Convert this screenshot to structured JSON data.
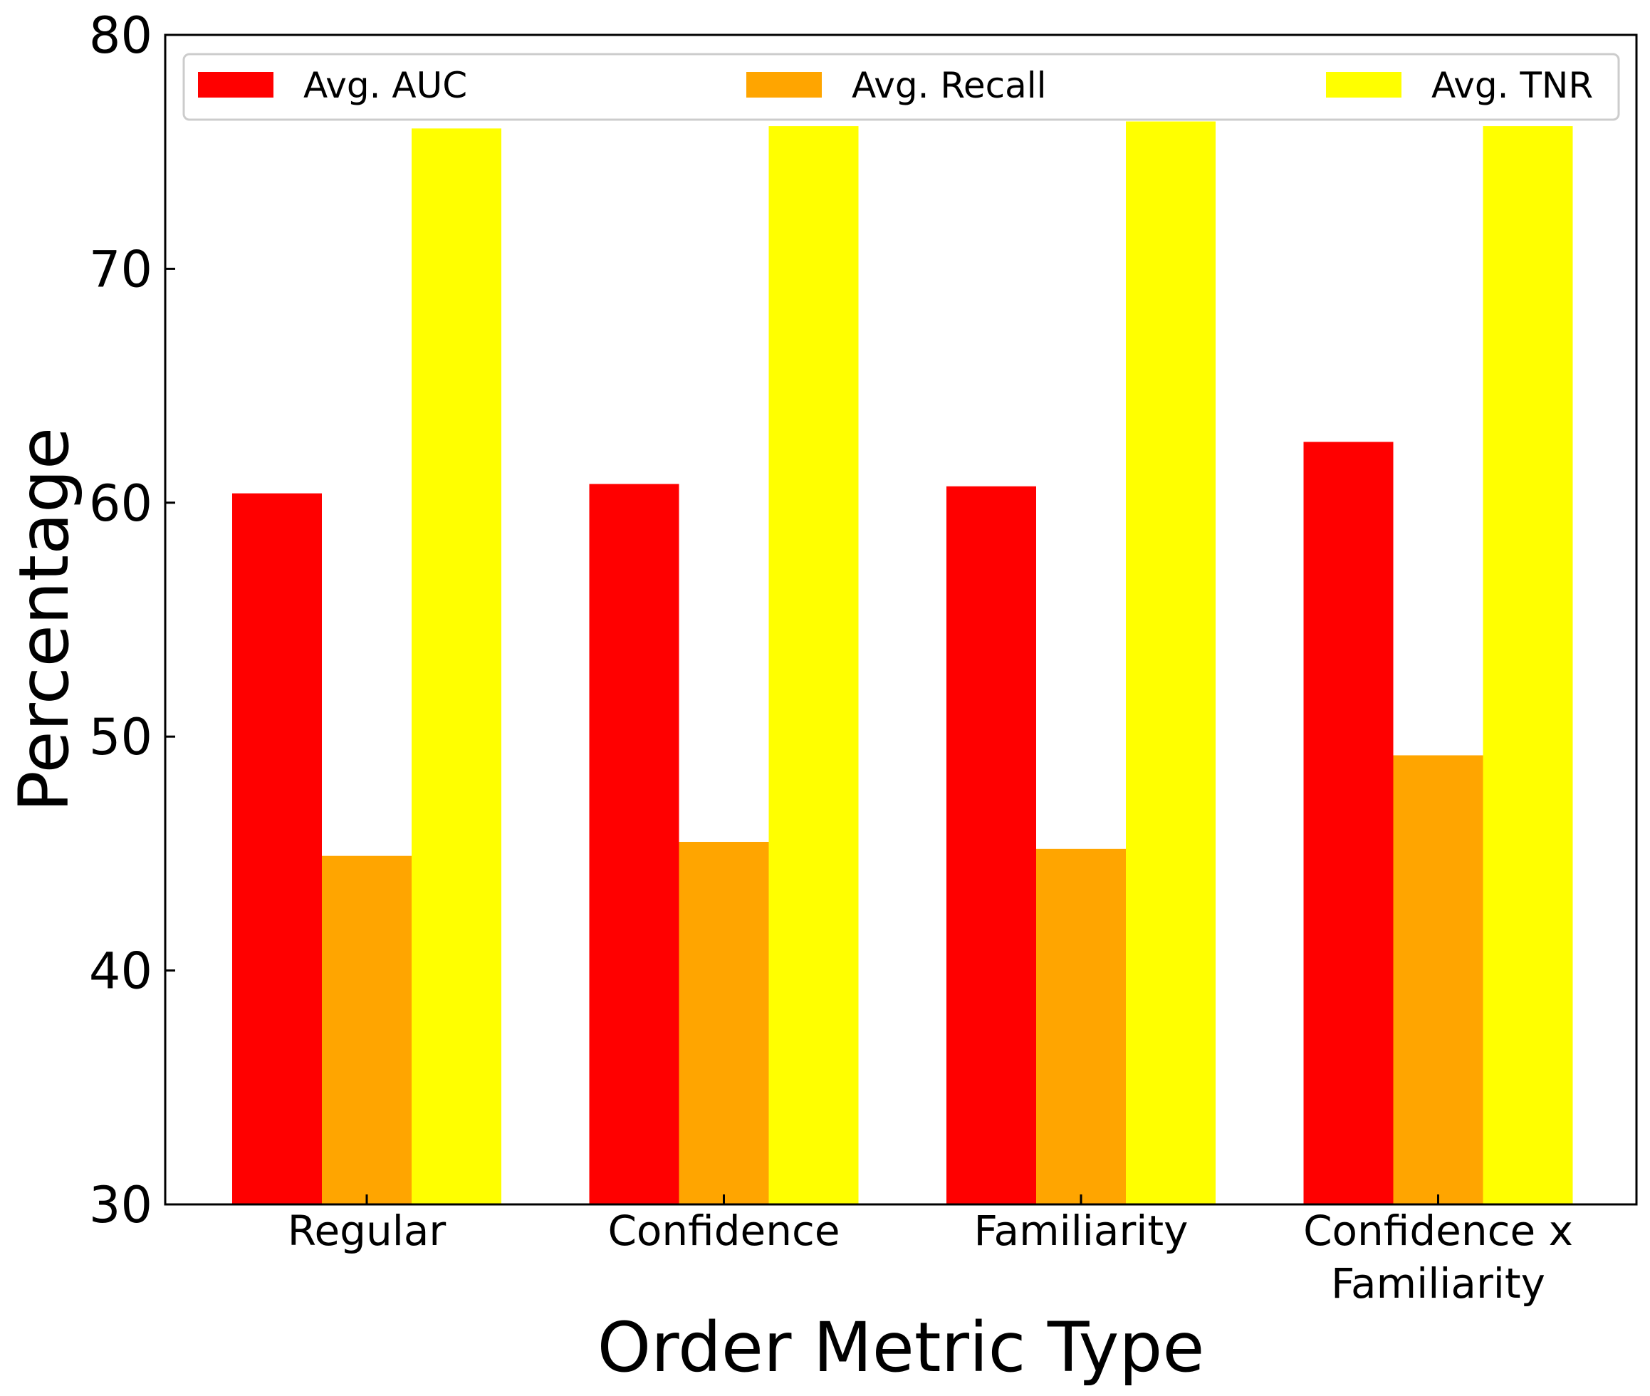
{
  "chart_data": {
    "type": "bar",
    "title": "",
    "xlabel": "Order Metric Type",
    "ylabel": "Percentage",
    "ylim": [
      30,
      80
    ],
    "yticks": [
      "30",
      "40",
      "50",
      "60",
      "70",
      "80"
    ],
    "grid": false,
    "legend_position": "top",
    "categories": [
      [
        "Regular"
      ],
      [
        "Confidence"
      ],
      [
        "Familiarity"
      ],
      [
        "Confidence x",
        "Familiarity"
      ]
    ],
    "series": [
      {
        "name": "Avg. AUC",
        "color": "#ff0000",
        "values": [
          60.4,
          60.8,
          60.7,
          62.6
        ]
      },
      {
        "name": "Avg. Recall",
        "color": "#ffa500",
        "values": [
          44.9,
          45.5,
          45.2,
          49.2
        ]
      },
      {
        "name": "Avg. TNR",
        "color": "#ffff00",
        "values": [
          76.0,
          76.1,
          76.3,
          76.1
        ]
      }
    ]
  }
}
